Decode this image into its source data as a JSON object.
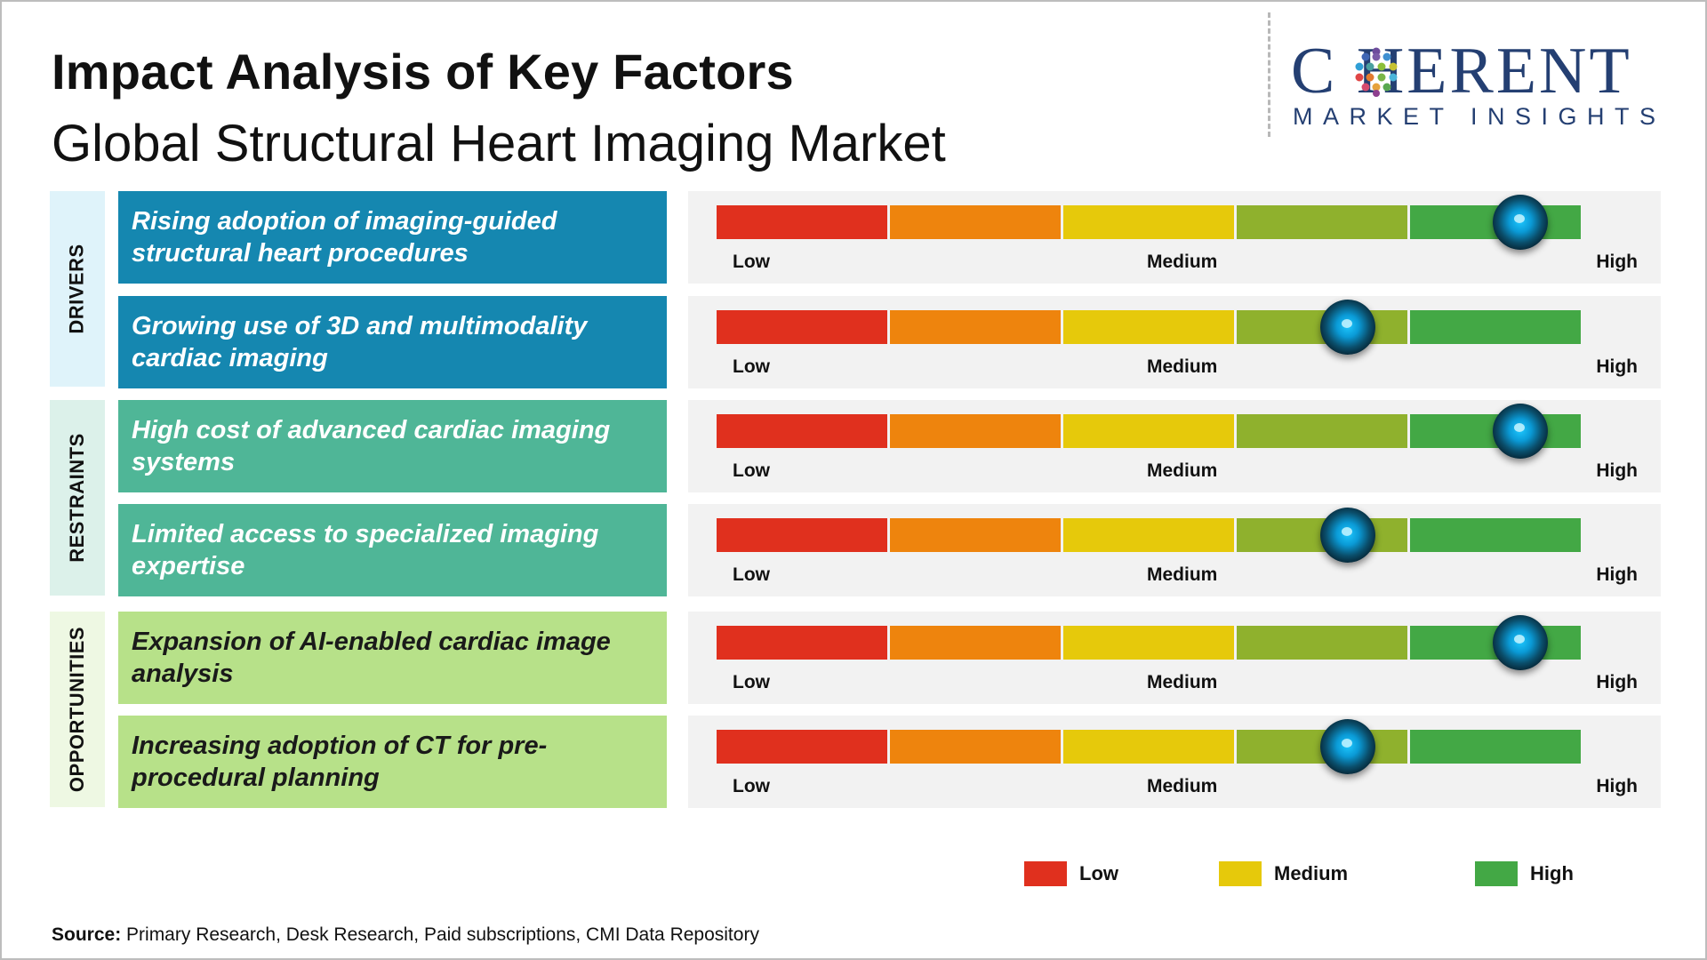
{
  "header": {
    "title": "Impact Analysis of Key Factors",
    "subtitle": "Global Structural Heart Imaging Market"
  },
  "logo": {
    "word": "C HERENT",
    "tagline": "MARKET INSIGHTS"
  },
  "colors": {
    "drivers_fill": "#1587b0",
    "restraints_fill": "#4fb697",
    "opportunities_fill": "#b7e189",
    "drivers_tab": "#dff3fa",
    "restraints_tab": "#dcf1ea",
    "opportunities_tab": "#eef8e3",
    "scale": [
      "#e0301e",
      "#ee840d",
      "#e6c90b",
      "#8fb12d",
      "#43a845"
    ]
  },
  "scale_labels": {
    "low": "Low",
    "medium": "Medium",
    "high": "High"
  },
  "chart_data": {
    "type": "table",
    "scale": [
      "Low",
      "Medium",
      "High"
    ],
    "categories": [
      {
        "name": "DRIVERS",
        "factors": [
          {
            "label": "Rising adoption of imaging-guided structural heart procedures",
            "impact": 0.93
          },
          {
            "label": "Growing use of 3D and multimodality cardiac imaging",
            "impact": 0.73
          }
        ]
      },
      {
        "name": "RESTRAINTS",
        "factors": [
          {
            "label": "High cost of advanced cardiac imaging systems",
            "impact": 0.93
          },
          {
            "label": "Limited access to specialized imaging expertise",
            "impact": 0.73
          }
        ]
      },
      {
        "name": "OPPORTUNITIES",
        "factors": [
          {
            "label": "Expansion of AI-enabled cardiac image analysis",
            "impact": 0.93
          },
          {
            "label": "Increasing adoption of CT for pre-procedural planning",
            "impact": 0.73
          }
        ]
      }
    ]
  },
  "legend": [
    {
      "label": "Low",
      "color": "#e0301e"
    },
    {
      "label": "Medium",
      "color": "#e6c90b"
    },
    {
      "label": "High",
      "color": "#43a845"
    }
  ],
  "footer": {
    "source_label": "Source:",
    "source_text": " Primary Research, Desk Research, Paid subscriptions, CMI Data Repository"
  }
}
